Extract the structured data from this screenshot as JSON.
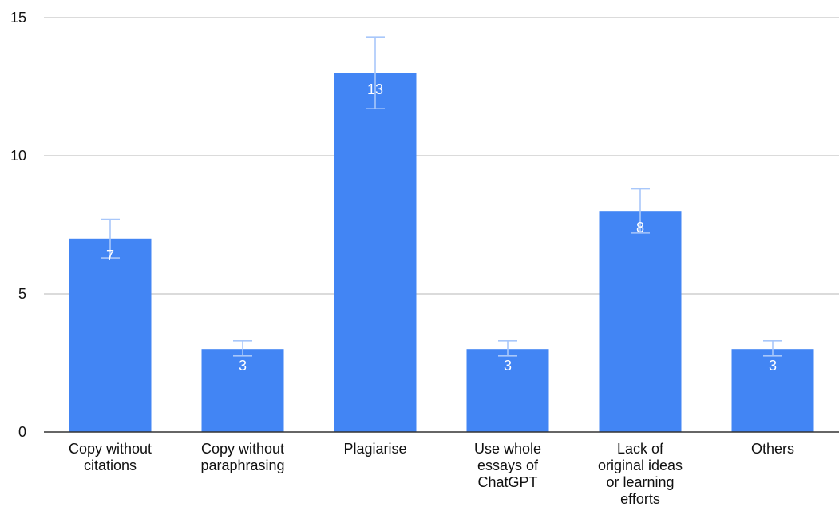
{
  "chart_data": {
    "type": "bar",
    "categories": [
      [
        "Copy without",
        "citations"
      ],
      [
        "Copy without",
        "paraphrasing"
      ],
      [
        "Plagiarise"
      ],
      [
        "Use whole",
        "essays of",
        "ChatGPT"
      ],
      [
        "Lack of",
        "original ideas",
        "or learning",
        "efforts"
      ],
      [
        "Others"
      ]
    ],
    "values": [
      7,
      3,
      13,
      3,
      8,
      3
    ],
    "error_bars": [
      {
        "low": 6.3,
        "high": 7.7
      },
      {
        "low": 2.75,
        "high": 3.3
      },
      {
        "low": 11.7,
        "high": 14.3
      },
      {
        "low": 2.75,
        "high": 3.3
      },
      {
        "low": 7.2,
        "high": 8.8
      },
      {
        "low": 2.75,
        "high": 3.3
      }
    ],
    "data_labels": [
      "7",
      "3",
      "13",
      "3",
      "8",
      "3"
    ],
    "yticks": [
      "0",
      "5",
      "10",
      "15"
    ],
    "ylim": [
      0,
      15
    ],
    "grid": true,
    "legend": "none",
    "title": "",
    "xlabel": "",
    "ylabel": "",
    "colors": {
      "bar": "#4285f4",
      "error_bar": "#a8c7fa",
      "grid": "#cfcfcf",
      "baseline": "#333333"
    }
  }
}
